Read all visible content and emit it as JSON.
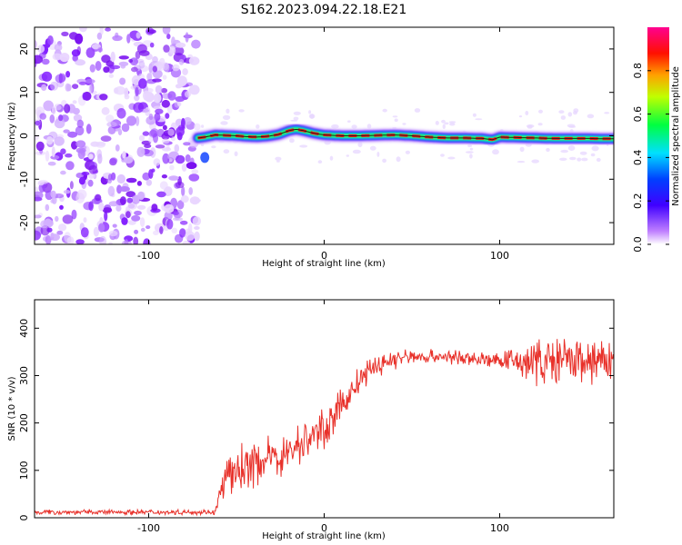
{
  "title": "S162.2023.094.22.18.E21",
  "chart_data": [
    {
      "type": "heatmap",
      "xlabel": "Height of straight line (km)",
      "ylabel": "Frequency (Hz)",
      "xlim": [
        -165,
        165
      ],
      "ylim": [
        -25,
        25
      ],
      "xticks": [
        -100,
        0,
        100
      ],
      "yticks": [
        -20,
        -10,
        0,
        10,
        20
      ],
      "noise_region_x": [
        -165,
        -72
      ],
      "carrier_track": {
        "x": [
          -72,
          -68,
          -62,
          -56,
          -50,
          -44,
          -38,
          -32,
          -26,
          -20,
          -16,
          -12,
          -6,
          0,
          10,
          20,
          30,
          40,
          50,
          60,
          70,
          80,
          90,
          96,
          100,
          110,
          120,
          130,
          140,
          150,
          160,
          165
        ],
        "freq": [
          -0.5,
          -0.3,
          0.2,
          0.1,
          0.0,
          -0.2,
          -0.3,
          -0.1,
          0.3,
          1.2,
          1.5,
          1.2,
          0.6,
          0.2,
          0.0,
          0.0,
          0.1,
          0.2,
          0.0,
          -0.3,
          -0.5,
          -0.5,
          -0.6,
          -0.9,
          -0.3,
          -0.4,
          -0.5,
          -0.6,
          -0.6,
          -0.6,
          -0.7,
          -0.7
        ]
      },
      "colorbar": {
        "label": "Normalized spectral amplitude",
        "ticks": [
          "0.0",
          "0.2",
          "0.4",
          "0.6",
          "0.8"
        ],
        "range": [
          0,
          1
        ],
        "colormap": [
          "#ffffff",
          "#a000ff",
          "#0000ff",
          "#00ffff",
          "#00ff00",
          "#ffff00",
          "#ff0000",
          "#ff0080"
        ]
      }
    },
    {
      "type": "line",
      "xlabel": "Height of straight line (km)",
      "ylabel": "SNR (10 * v/v)",
      "xlim": [
        -165,
        165
      ],
      "ylim": [
        0,
        460
      ],
      "xticks": [
        -100,
        0,
        100
      ],
      "yticks": [
        0,
        100,
        200,
        300,
        400
      ],
      "color": "#e8312a",
      "trend": {
        "x": [
          -165,
          -62,
          -58,
          -50,
          -40,
          -30,
          -20,
          -10,
          0,
          10,
          20,
          30,
          40,
          50,
          60,
          70,
          80,
          90,
          100,
          110,
          120,
          130,
          140,
          150,
          160,
          165
        ],
        "y": [
          12,
          12,
          70,
          100,
          115,
          125,
          140,
          165,
          190,
          235,
          290,
          320,
          335,
          340,
          340,
          340,
          335,
          335,
          330,
          330,
          330,
          330,
          330,
          330,
          330,
          330
        ]
      },
      "noise_amplitude": {
        "x": [
          -165,
          -62,
          -55,
          -20,
          0,
          30,
          50,
          100,
          110,
          130,
          165
        ],
        "amp": [
          5,
          5,
          45,
          40,
          38,
          25,
          15,
          15,
          35,
          50,
          40
        ]
      }
    }
  ]
}
